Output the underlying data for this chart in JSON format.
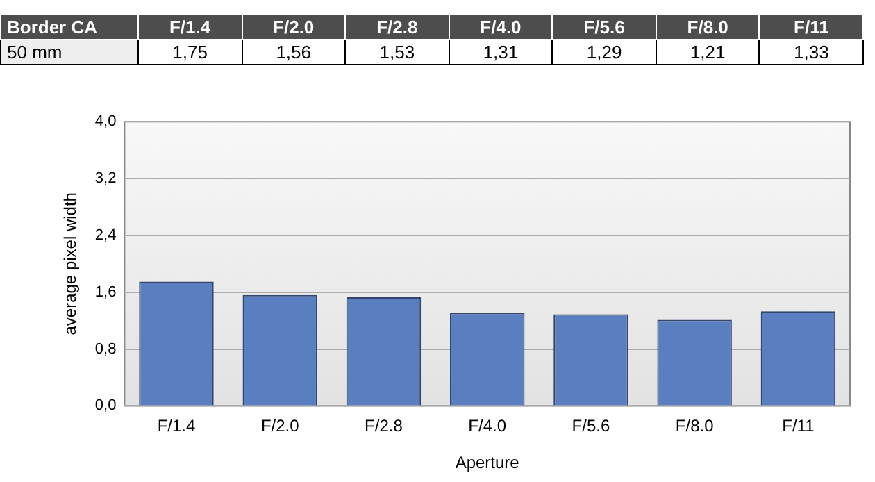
{
  "chart_data": {
    "type": "bar",
    "title": "Border CA",
    "xlabel": "Aperture",
    "ylabel": "average pixel width",
    "categories": [
      "F/1.4",
      "F/2.0",
      "F/2.8",
      "F/4.0",
      "F/5.6",
      "F/8.0",
      "F/11"
    ],
    "series": [
      {
        "name": "50 mm",
        "color": "#5a7fc0",
        "values": [
          1.75,
          1.56,
          1.53,
          1.31,
          1.29,
          1.21,
          1.33
        ],
        "value_labels": [
          "1,75",
          "1,56",
          "1,53",
          "1,31",
          "1,29",
          "1,21",
          "1,33"
        ]
      }
    ],
    "ylim": [
      0,
      4
    ],
    "yticks": [
      {
        "value": 0,
        "label": "0,0"
      },
      {
        "value": 0.8,
        "label": "0,8"
      },
      {
        "value": 1.6,
        "label": "1,6"
      },
      {
        "value": 2.4,
        "label": "2,4"
      },
      {
        "value": 3.2,
        "label": "3,2"
      },
      {
        "value": 4,
        "label": "4,0"
      }
    ],
    "grid": "y",
    "legend": false
  }
}
